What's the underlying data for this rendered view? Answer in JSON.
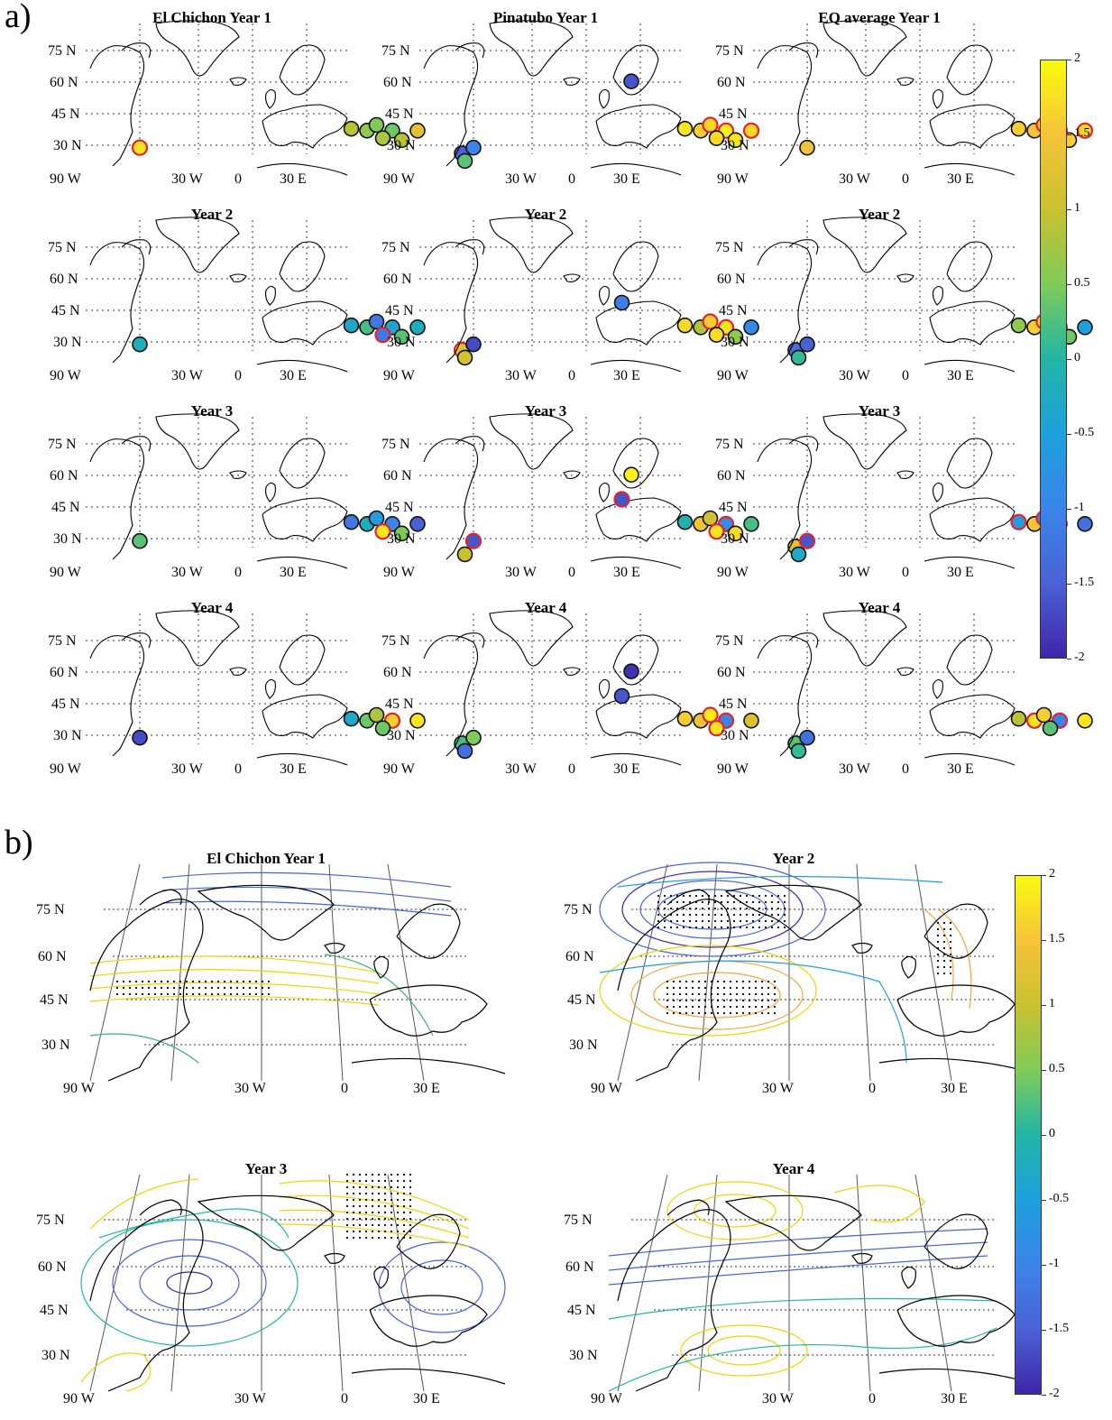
{
  "panel_labels": {
    "a": "a)",
    "b": "b)"
  },
  "lat_labels": [
    "75  N",
    "60  N",
    "45  N",
    "30  N"
  ],
  "lon_labels": [
    "90  W",
    "30  W",
    "0",
    "30  E"
  ],
  "colorbar_a": {
    "ticks": [
      "2",
      "1.5",
      "1",
      "0.5",
      "0",
      "-0.5",
      "-1",
      "-1.5",
      "-2"
    ],
    "range": [
      -2,
      2
    ]
  },
  "colorbar_b": {
    "ticks": [
      "2",
      "1.5",
      "1",
      "0.5",
      "0",
      "-0.5",
      "-1",
      "-1.5",
      "-2"
    ],
    "range": [
      -2,
      2
    ]
  },
  "colors": {
    "outline_significant": "#e8212b",
    "outline_normal": "#111111",
    "stipple": "#000000",
    "graticule": "#555555"
  },
  "chart_data": [
    {
      "type": "scatter",
      "panel": "a",
      "columns": [
        "El Chichon",
        "Pinatubo",
        "EQ average"
      ],
      "rows": [
        {
          "titles": [
            "El Chichon Year 1",
            "Pinatubo Year 1",
            "EQ average Year 1"
          ]
        },
        {
          "titles": [
            "Year 2",
            "Year 2",
            "Year 2"
          ]
        },
        {
          "titles": [
            "Year 3",
            "Year 3",
            "Year 3"
          ]
        },
        {
          "titles": [
            "Year 4",
            "Year 4",
            "Year 4"
          ]
        }
      ],
      "stations": [
        {
          "id": "NAmerica",
          "lon": -70,
          "lat": 43
        },
        {
          "id": "W1",
          "lon": -3,
          "lat": 53
        },
        {
          "id": "W2",
          "lon": 2,
          "lat": 52
        },
        {
          "id": "C1",
          "lon": 5,
          "lat": 55
        },
        {
          "id": "C2",
          "lon": 10,
          "lat": 52
        },
        {
          "id": "C3",
          "lon": 7,
          "lat": 48
        },
        {
          "id": "C4",
          "lon": 13,
          "lat": 47
        },
        {
          "id": "E1",
          "lon": 18,
          "lat": 52
        },
        {
          "id": "S1",
          "lon": 32,
          "lat": 40
        },
        {
          "id": "S2",
          "lon": 33,
          "lat": 36
        },
        {
          "id": "IS1",
          "lon": -23,
          "lat": 65
        },
        {
          "id": "SV1",
          "lon": -20,
          "lat": 78
        }
      ],
      "values": [
        [
          {
            "NAmerica": 1.8,
            "W1": 0.9,
            "W2": 0.6,
            "C1": 0.5,
            "C2": 0.4,
            "C3": 0.8,
            "C4": 0.9,
            "E1": 1.3,
            "S1": -1.5,
            "S2": 0.3,
            "sig": [
              "NAmerica"
            ]
          },
          {
            "NAmerica": -1.0,
            "SV1": -1.6,
            "W1": 1.8,
            "W2": 1.6,
            "C1": 1.7,
            "C2": 1.9,
            "C3": 1.7,
            "C4": 1.8,
            "E1": 1.7,
            "sig": [
              "C1",
              "C2",
              "E1"
            ]
          },
          {
            "NAmerica": 1.4,
            "W1": 1.6,
            "W2": 1.5,
            "C1": 1.7,
            "C2": 1.8,
            "C3": 1.7,
            "C4": 1.6,
            "E1": 1.7,
            "sig": [
              "C1",
              "C2",
              "C3",
              "E1"
            ]
          }
        ],
        [
          {
            "NAmerica": -0.2,
            "W1": -0.3,
            "W2": 0.2,
            "C1": -1.2,
            "C2": -0.4,
            "C3": -1.2,
            "C4": 0.3,
            "E1": -0.2,
            "S1": 1.2,
            "S2": 1.1,
            "sig": [
              "C3",
              "S1"
            ]
          },
          {
            "NAmerica": -1.7,
            "IS1": -1.1,
            "W1": 1.7,
            "W2": 0.8,
            "C1": 1.6,
            "C2": 1.8,
            "C3": 1.7,
            "C4": 0.6,
            "E1": -0.9,
            "S1": -1.3,
            "S2": 0.1,
            "sig": [
              "C1",
              "C2"
            ]
          },
          {
            "NAmerica": -1.5,
            "W1": 0.6,
            "W2": 1.6,
            "C1": 1.9,
            "C2": 1.8,
            "C3": 0.7,
            "C4": 0.4,
            "E1": -0.5,
            "S1": -1.1,
            "S2": 0.6,
            "sig": [
              "C1",
              "C2"
            ]
          }
        ],
        [
          {
            "NAmerica": 0.3,
            "W1": -1.2,
            "W2": -0.2,
            "C1": -0.6,
            "C2": -1.0,
            "C3": 1.8,
            "C4": 0.5,
            "E1": -1.5,
            "S2": 1.0,
            "sig": [
              "C3"
            ]
          },
          {
            "NAmerica": -1.6,
            "SV1": 1.9,
            "IS1": -1.6,
            "W1": -0.1,
            "W2": 1.4,
            "C1": 1.1,
            "C2": -0.9,
            "C3": 1.8,
            "C4": 1.7,
            "E1": 0.2,
            "S1": 1.3,
            "S2": -0.3,
            "sig": [
              "NAmerica",
              "IS1",
              "C2",
              "C3"
            ]
          },
          {
            "NAmerica": -1.6,
            "W1": -0.6,
            "W2": 1.5,
            "C1": -0.9,
            "C2": -1.0,
            "C3": 0.6,
            "E1": -1.3,
            "S2": 0.2,
            "sig": [
              "NAmerica",
              "W1",
              "C1",
              "C2"
            ]
          }
        ],
        [
          {
            "NAmerica": -1.7,
            "W1": -0.3,
            "W2": 0.4,
            "C1": 0.8,
            "C2": 1.6,
            "C3": 0.4,
            "E1": 1.8,
            "S1": 0.2,
            "S2": -1.3,
            "sig": [
              "C2"
            ]
          },
          {
            "NAmerica": 0.5,
            "SV1": -1.9,
            "IS1": -1.6,
            "W1": 1.6,
            "W2": 1.4,
            "C1": 1.9,
            "C2": -1.0,
            "C3": 1.8,
            "E1": 1.2,
            "S1": 0.3,
            "S2": 0.1,
            "sig": [
              "C1",
              "C2",
              "C3"
            ]
          },
          {
            "NAmerica": -1.3,
            "W1": 0.9,
            "W2": 1.8,
            "C1": 1.6,
            "C2": -1.0,
            "C3": 0.3,
            "E1": 1.8,
            "S1": 0.1,
            "S2": -0.5,
            "sig": [
              "W2",
              "C2"
            ]
          }
        ]
      ]
    },
    {
      "type": "contour",
      "panel": "b",
      "maps": [
        {
          "title": "El Chichon Year 1"
        },
        {
          "title": "Year 2"
        },
        {
          "title": "Year 3"
        },
        {
          "title": "Year 4"
        }
      ]
    }
  ]
}
